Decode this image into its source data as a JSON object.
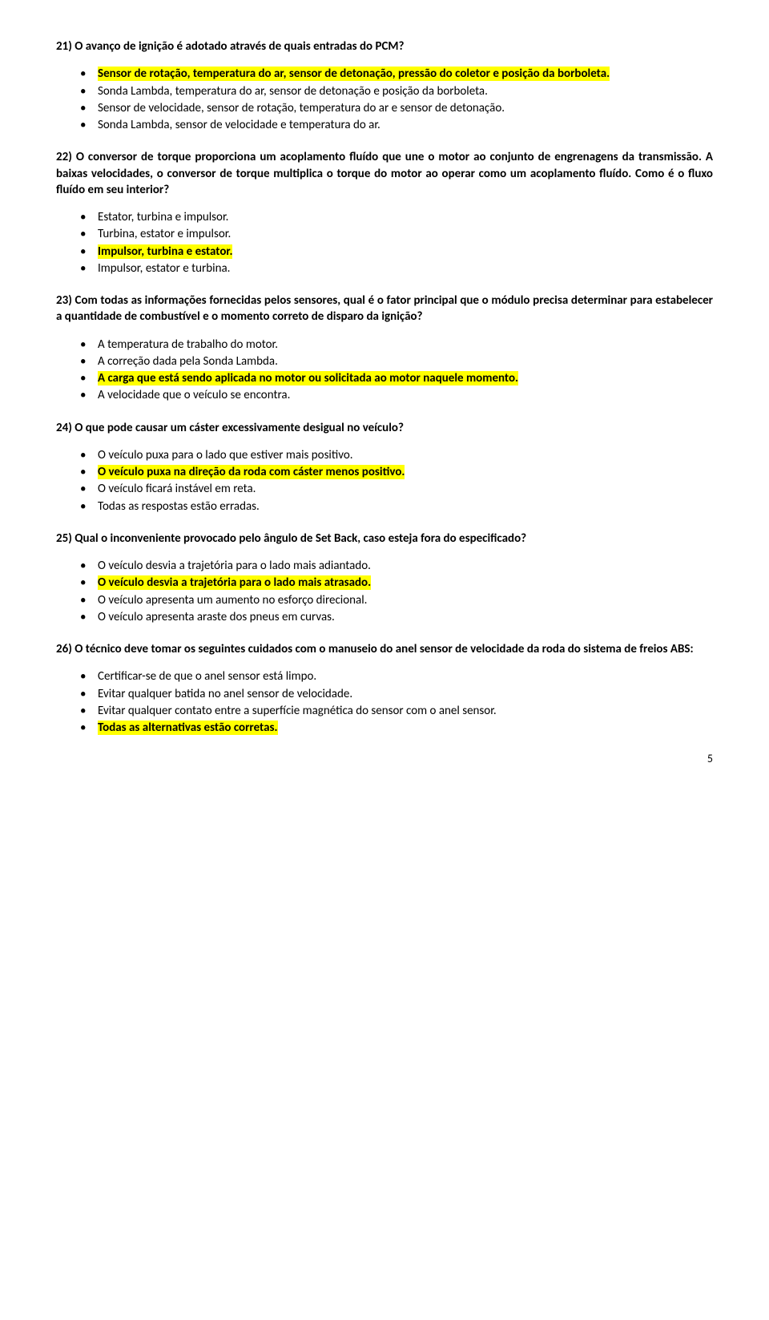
{
  "q21": {
    "text": "21) O avanço de ignição é adotado através de quais entradas do PCM?",
    "opts": [
      {
        "t": "Sensor de rotação, temperatura do ar, sensor de detonação, pressão do coletor e posição da borboleta.",
        "hl": true
      },
      {
        "t": "Sonda Lambda, temperatura do ar, sensor de detonação e posição da borboleta.",
        "hl": false
      },
      {
        "t": "Sensor de velocidade, sensor de rotação, temperatura do ar e sensor de detonação.",
        "hl": false
      },
      {
        "t": "Sonda Lambda, sensor de velocidade e temperatura do ar.",
        "hl": false
      }
    ]
  },
  "q22": {
    "text": "22) O conversor de torque proporciona um acoplamento fluído que une o motor ao conjunto de engrenagens da transmissão. A baixas velocidades, o conversor de torque multiplica o torque do motor ao operar como um acoplamento fluído. Como é o fluxo fluído em seu interior?",
    "opts": [
      {
        "t": "Estator, turbina e impulsor.",
        "hl": false
      },
      {
        "t": "Turbina, estator e impulsor.",
        "hl": false
      },
      {
        "t": "Impulsor, turbina e estator.",
        "hl": true
      },
      {
        "t": "Impulsor, estator e turbina.",
        "hl": false
      }
    ]
  },
  "q23": {
    "text": "23) Com todas as informações fornecidas pelos sensores, qual é o fator principal que o módulo precisa determinar para estabelecer a quantidade de combustível e o momento correto de disparo da ignição?",
    "opts": [
      {
        "t": "A temperatura de trabalho do motor.",
        "hl": false
      },
      {
        "t": "A correção dada pela Sonda Lambda.",
        "hl": false
      },
      {
        "t": "A carga que está sendo aplicada no motor ou solicitada ao motor naquele momento.",
        "hl": true
      },
      {
        "t": "A velocidade que o veículo se encontra.",
        "hl": false
      }
    ]
  },
  "q24": {
    "text": "24)  O que pode causar um cáster excessivamente desigual no veículo?",
    "opts": [
      {
        "t": "O veículo puxa para o lado que estiver mais positivo.",
        "hl": false
      },
      {
        "t": "O veículo puxa na direção da roda com cáster menos positivo.",
        "hl": true
      },
      {
        "t": "O veículo ficará instável em reta.",
        "hl": false
      },
      {
        "t": "Todas as respostas estão erradas.",
        "hl": false
      }
    ]
  },
  "q25": {
    "text": "25) Qual o inconveniente provocado pelo ângulo de Set Back, caso esteja fora do especificado?",
    "opts": [
      {
        "t": "O veículo desvia a trajetória para o lado mais adiantado.",
        "hl": false
      },
      {
        "t": "O veículo desvia a trajetória para o lado mais atrasado.",
        "hl": true
      },
      {
        "t": "O veículo apresenta um aumento no esforço direcional.",
        "hl": false
      },
      {
        "t": "O veículo apresenta araste dos pneus em curvas.",
        "hl": false
      }
    ]
  },
  "q26": {
    "text": "26) O técnico deve tomar os seguintes cuidados com o manuseio do anel sensor de velocidade da roda do sistema de freios ABS:",
    "opts": [
      {
        "t": "Certificar-se de que o anel sensor está limpo.",
        "hl": false
      },
      {
        "t": "Evitar qualquer batida no anel sensor de velocidade.",
        "hl": false
      },
      {
        "t": "Evitar qualquer contato entre a superfície magnética do sensor com o anel sensor.",
        "hl": false
      },
      {
        "t": "Todas as alternativas estão corretas.",
        "hl": true
      }
    ]
  },
  "pagenum": "5"
}
